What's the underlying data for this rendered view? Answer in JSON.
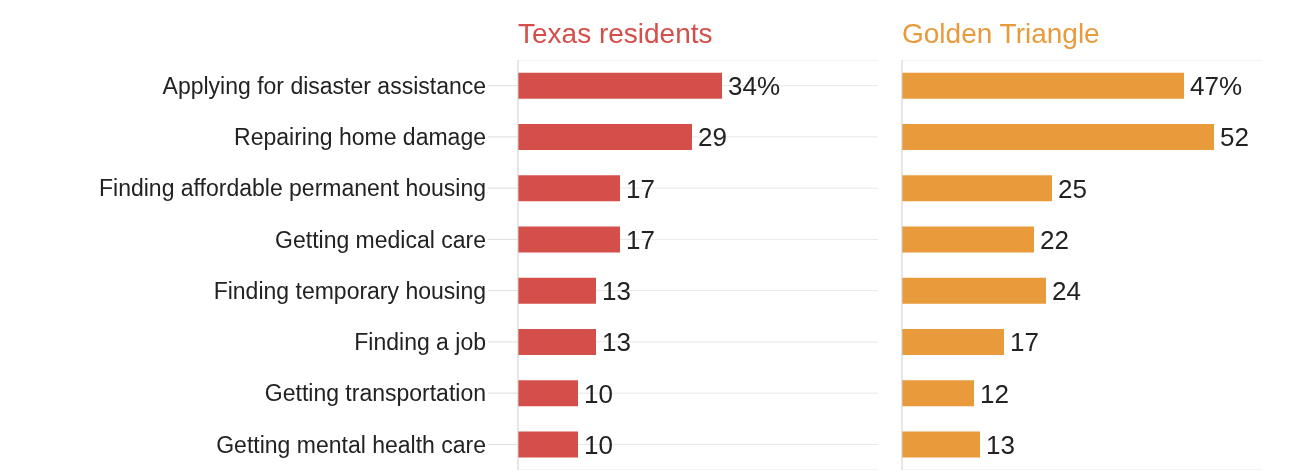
{
  "chart_data": [
    {
      "type": "bar",
      "orientation": "horizontal",
      "title": "Texas residents",
      "categories": [
        "Applying for disaster assistance",
        "Repairing home damage",
        "Finding affordable permanent housing",
        "Getting medical care",
        "Finding temporary housing",
        "Finding a job",
        "Getting transportation",
        "Getting mental health care"
      ],
      "series": [
        {
          "color": "#d44f49",
          "values": [
            34,
            29,
            17,
            17,
            13,
            13,
            10,
            10
          ],
          "value_labels": [
            "34%",
            "29",
            "17",
            "17",
            "13",
            "13",
            "10",
            "10"
          ]
        }
      ],
      "xlim": [
        0,
        60
      ],
      "grid": "y",
      "tick_labels": "y"
    },
    {
      "type": "bar",
      "orientation": "horizontal",
      "title": "Golden Triangle",
      "categories": [
        null,
        null,
        null,
        null,
        null,
        null,
        null,
        null
      ],
      "series": [
        {
          "color": "#e99a3b",
          "values": [
            47,
            52,
            25,
            22,
            24,
            17,
            12,
            13
          ],
          "value_labels": [
            "47%",
            "52",
            "25",
            "22",
            "24",
            "17",
            "12",
            "13"
          ]
        }
      ],
      "xlim": [
        0,
        60
      ],
      "grid": "y",
      "tick_labels": false
    }
  ]
}
